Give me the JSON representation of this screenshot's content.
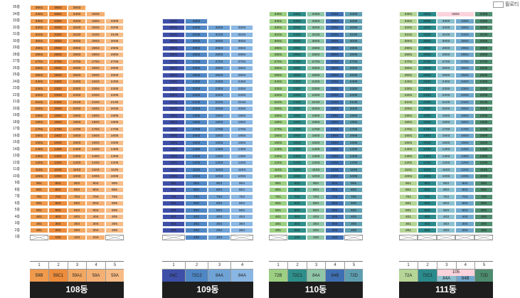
{
  "legend": {
    "label": "필로티"
  },
  "floors": [
    "35층",
    "34층",
    "33층",
    "32층",
    "31층",
    "30층",
    "29층",
    "28층",
    "27층",
    "26층",
    "25층",
    "24층",
    "23층",
    "22층",
    "21층",
    "20층",
    "19층",
    "18층",
    "17층",
    "16층",
    "15층",
    "14층",
    "13층",
    "12층",
    "11층",
    "10층",
    "9층",
    "8층",
    "7층",
    "6층",
    "5층",
    "4층",
    "3층",
    "2층",
    "1층"
  ],
  "buildings": [
    {
      "name": "108동",
      "colors": [
        "#ef9a4d",
        "#ec8c3c",
        "#f3a862",
        "#f4b074",
        "#f7bb85"
      ],
      "top_floors": [
        35,
        35,
        35,
        34,
        33
      ],
      "units": [
        {
          "num": "1",
          "type": "59B"
        },
        {
          "num": "2",
          "type": "59C1"
        },
        {
          "num": "3",
          "type": "59A1"
        },
        {
          "num": "4",
          "type": "59A"
        },
        {
          "num": "5",
          "type": "59A"
        }
      ],
      "ground": [
        null,
        "102",
        "103",
        "104",
        null
      ],
      "special": {}
    },
    {
      "name": "109동",
      "colors": [
        "#3e4fa8",
        "#4f86c4",
        "#6fa3d6",
        "#89b6e2",
        null
      ],
      "top_floors": [
        33,
        33,
        32,
        32,
        0
      ],
      "units": [
        {
          "num": "1",
          "type": "84C"
        },
        {
          "num": "2",
          "type": "72C2"
        },
        {
          "num": "3",
          "type": "84A"
        },
        {
          "num": "4",
          "type": "84A"
        }
      ],
      "ground": [
        null,
        "102",
        "103",
        null
      ],
      "special": {}
    },
    {
      "name": "110동",
      "colors": [
        "#9ccf82",
        "#2f8f8a",
        "#8fc6a8",
        "#3f6fb3",
        "#5f9eb0"
      ],
      "top_floors": [
        34,
        34,
        34,
        34,
        34
      ],
      "units": [
        {
          "num": "1",
          "type": "72B"
        },
        {
          "num": "2",
          "type": "72C1"
        },
        {
          "num": "3",
          "type": "84A"
        },
        {
          "num": "4",
          "type": "84B"
        },
        {
          "num": "5",
          "type": "72D"
        }
      ],
      "ground": [
        null,
        "102",
        "103",
        "104",
        null
      ],
      "special": {}
    },
    {
      "name": "111동",
      "colors": [
        "#b5d696",
        "#2a8a8c",
        "#8cc1cf",
        "#70a8cc",
        "#4d8c6e"
      ],
      "top_floors": [
        34,
        34,
        34,
        34,
        34
      ],
      "units": [
        {
          "num": "1",
          "type": "72A"
        },
        {
          "num": "2",
          "type": "72C1"
        },
        {
          "num": "3",
          "type": "84A"
        },
        {
          "num": "4",
          "type": "84B"
        },
        {
          "num": "5",
          "type": "72D"
        }
      ],
      "ground": [
        null,
        null,
        null,
        null,
        null
      ],
      "special": {
        "merged_top": "3404",
        "merged_unit": "105"
      }
    }
  ]
}
